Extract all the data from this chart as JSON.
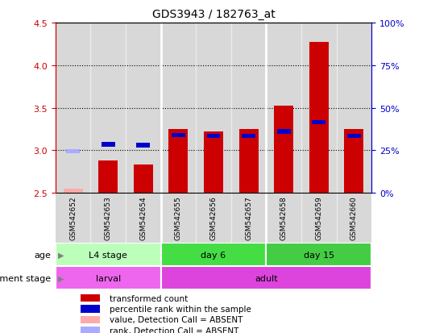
{
  "title": "GDS3943 / 182763_at",
  "samples": [
    "GSM542652",
    "GSM542653",
    "GSM542654",
    "GSM542655",
    "GSM542656",
    "GSM542657",
    "GSM542658",
    "GSM542659",
    "GSM542660"
  ],
  "red_values": [
    2.55,
    2.88,
    2.83,
    3.25,
    3.22,
    3.25,
    3.52,
    4.27,
    3.25
  ],
  "blue_values": [
    2.99,
    3.07,
    3.06,
    3.18,
    3.17,
    3.17,
    3.22,
    3.33,
    3.17
  ],
  "absent_mask": [
    true,
    false,
    false,
    false,
    false,
    false,
    false,
    false,
    false
  ],
  "ylim_left": [
    2.5,
    4.5
  ],
  "ylim_right": [
    0,
    100
  ],
  "yticks_left": [
    2.5,
    3.0,
    3.5,
    4.0,
    4.5
  ],
  "yticks_right": [
    0,
    25,
    50,
    75,
    100
  ],
  "grid_values": [
    3.0,
    3.5,
    4.0
  ],
  "bar_width": 0.55,
  "bar_color_present": "#cc0000",
  "bar_color_absent": "#ffaaaa",
  "dot_color_present": "#0000cc",
  "dot_color_absent": "#aaaaff",
  "bg_color": "#d8d8d8",
  "age_groups": [
    {
      "label": "L4 stage",
      "start": 0,
      "end": 3,
      "color": "#bbffbb"
    },
    {
      "label": "day 6",
      "start": 3,
      "end": 6,
      "color": "#44dd44"
    },
    {
      "label": "day 15",
      "start": 6,
      "end": 9,
      "color": "#44cc44"
    }
  ],
  "dev_groups": [
    {
      "label": "larval",
      "start": 0,
      "end": 3,
      "color": "#ee66ee"
    },
    {
      "label": "adult",
      "start": 3,
      "end": 9,
      "color": "#dd44dd"
    }
  ],
  "legend_items": [
    {
      "label": "transformed count",
      "color": "#cc0000"
    },
    {
      "label": "percentile rank within the sample",
      "color": "#0000cc"
    },
    {
      "label": "value, Detection Call = ABSENT",
      "color": "#ffaaaa"
    },
    {
      "label": "rank, Detection Call = ABSENT",
      "color": "#aaaaff"
    }
  ],
  "age_label": "age",
  "dev_label": "development stage",
  "left_axis_color": "#cc0000",
  "right_axis_color": "#0000cc",
  "right_ytick_labels": [
    "0%",
    "25%",
    "50%",
    "75%",
    "100%"
  ],
  "group_sep_cols": [
    2.5,
    5.5
  ]
}
